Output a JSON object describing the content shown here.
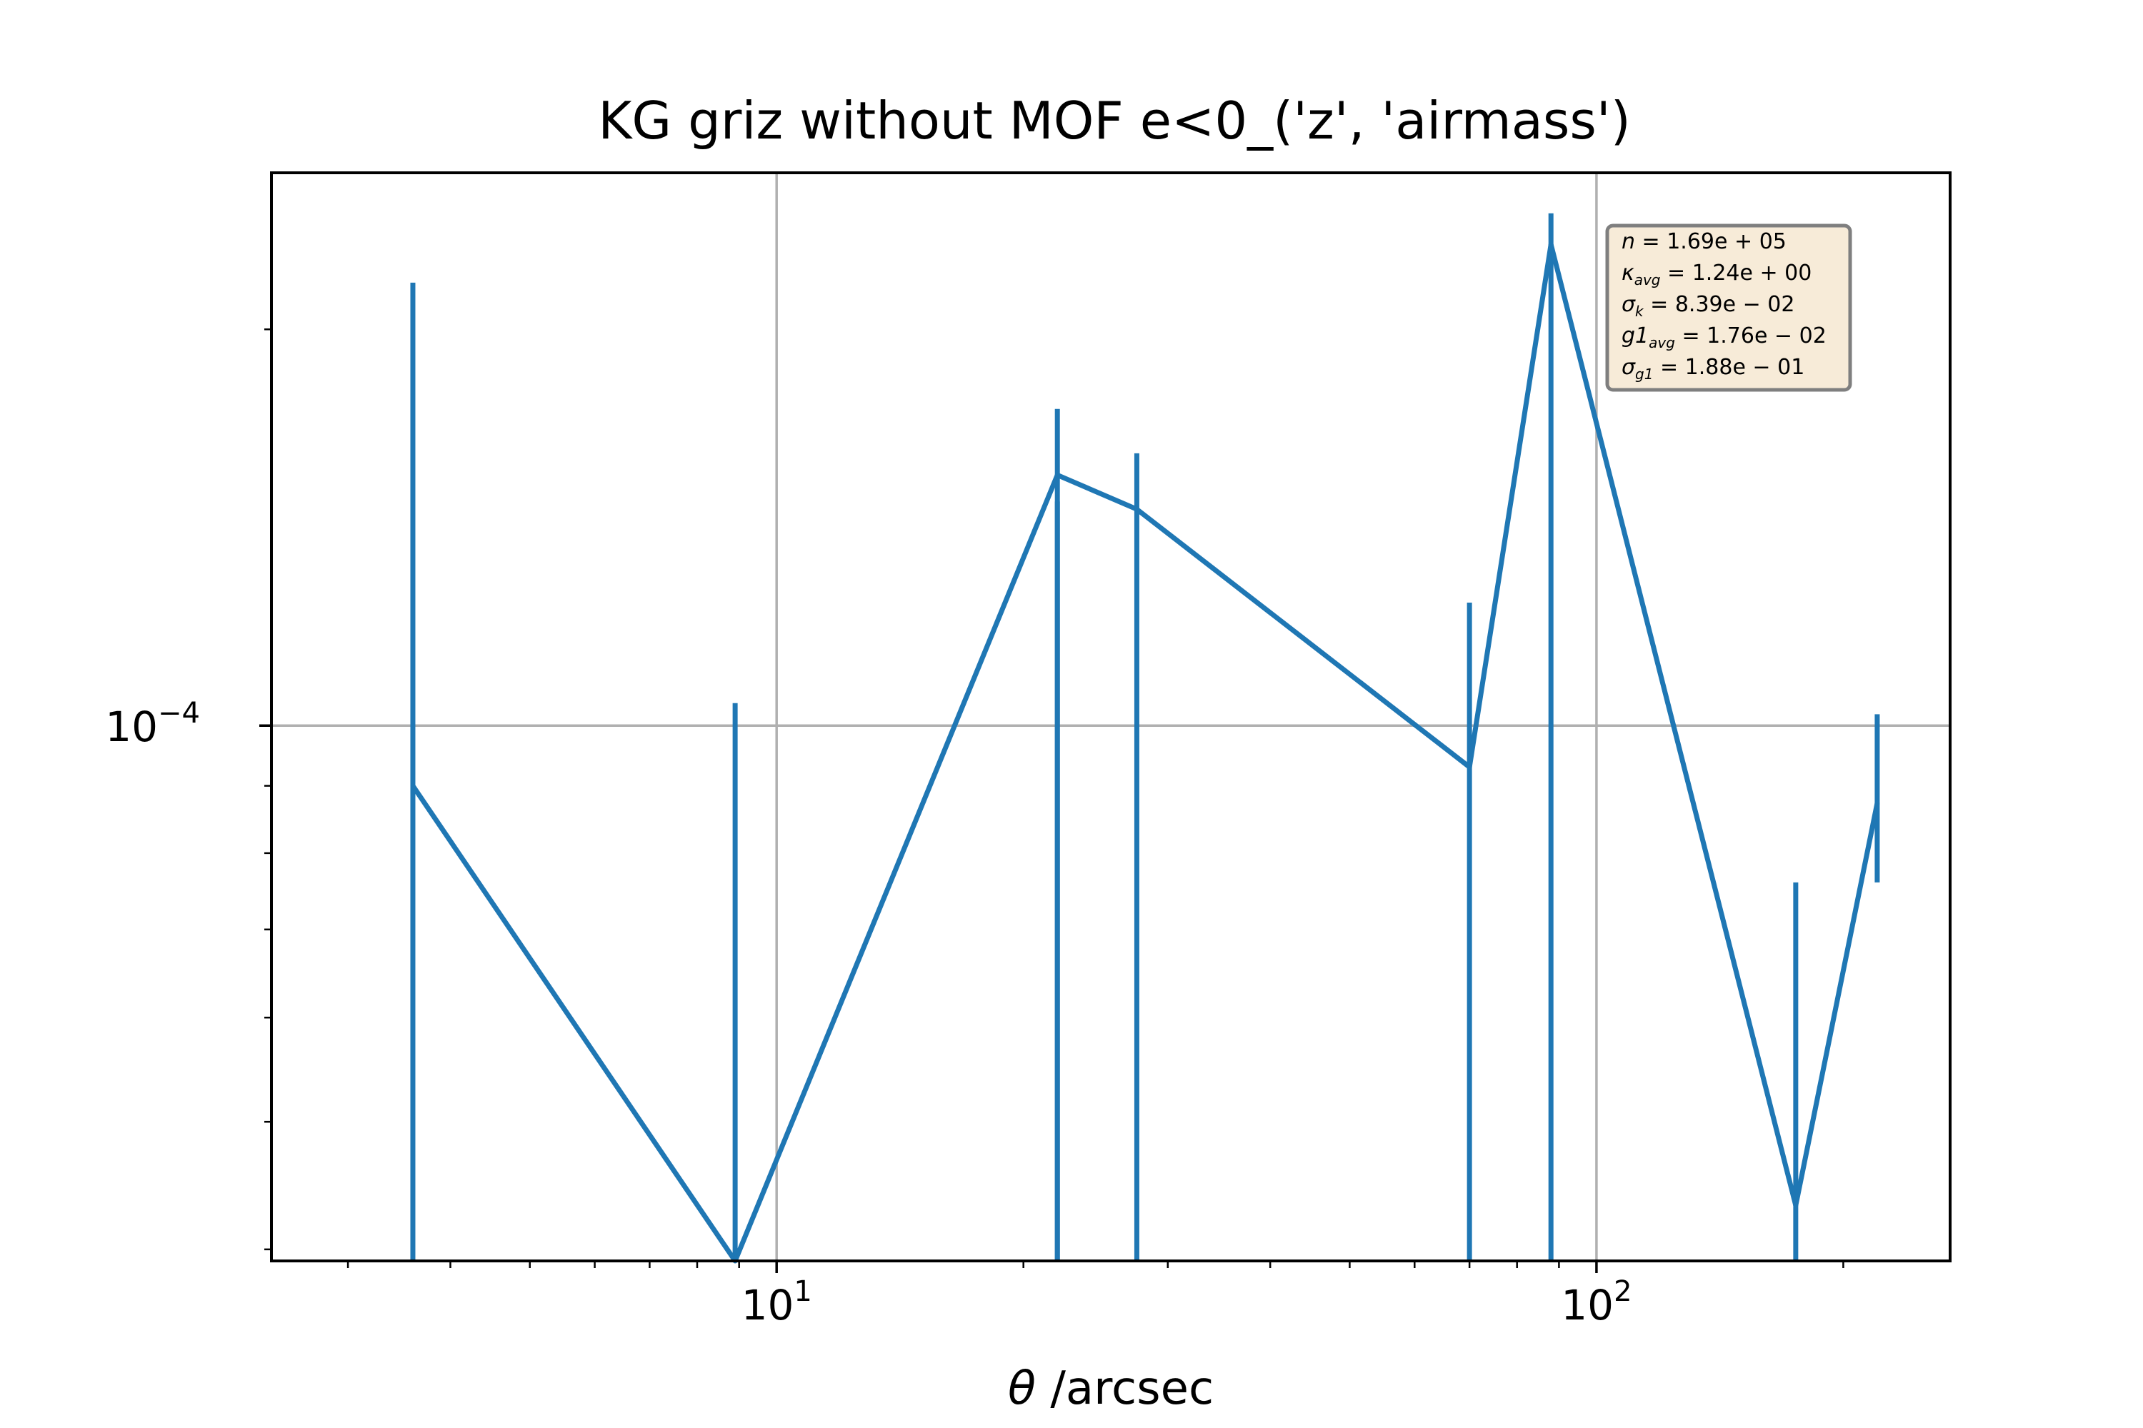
{
  "chart_data": {
    "type": "line",
    "title": "KG griz without MOF e<0_('z', 'airmass')",
    "xlabel": {
      "symbol": "θ",
      "text": " /arcsec"
    },
    "ylabel": "",
    "x_scale": "log",
    "y_scale": "log",
    "xlim": [
      2.42,
      270
    ],
    "ylim": [
      3.92e-05,
      0.000263
    ],
    "grid": true,
    "x_ticks": [
      {
        "value": 10,
        "base": "10",
        "exp": "1"
      },
      {
        "value": 100,
        "base": "10",
        "exp": "2"
      }
    ],
    "y_ticks": [
      {
        "value": 0.0001,
        "base": "10",
        "exp": "−4"
      }
    ],
    "series": [
      {
        "color": "#1f77b4",
        "points": [
          {
            "x": 3.6,
            "y": 9e-05
          },
          {
            "x": 8.9,
            "y": 3e-05
          },
          {
            "x": 22,
            "y": 0.000155
          },
          {
            "x": 27.5,
            "y": 0.000146
          },
          {
            "x": 70,
            "y": 9.3e-05
          },
          {
            "x": 88,
            "y": 0.000232
          },
          {
            "x": 175,
            "y": 4.32e-05
          },
          {
            "x": 220,
            "y": 8.73e-05
          }
        ],
        "errorbars": [
          {
            "x": 3.6,
            "low": 3.92e-05,
            "high": 0.000217
          },
          {
            "x": 8.9,
            "low": 3.92e-05,
            "high": 0.000104
          },
          {
            "x": 22,
            "low": 3.92e-05,
            "high": 0.000148
          },
          {
            "x": 22,
            "low": 3.92e-05,
            "high": 0.000174
          },
          {
            "x": 27.5,
            "low": 3.92e-05,
            "high": 0.000161
          },
          {
            "x": 70,
            "low": 3.92e-05,
            "high": 0.000124
          },
          {
            "x": 88,
            "low": 3.92e-05,
            "high": 0.000245
          },
          {
            "x": 175,
            "low": 3.92e-05,
            "high": 7.6e-05
          },
          {
            "x": 220,
            "low": 7.6e-05,
            "high": 0.000102
          }
        ]
      }
    ],
    "stats_box": {
      "position": "top-right",
      "background": "#f7ebd8",
      "border": "#7f7f7f",
      "lines": [
        {
          "sym": "n",
          "sub": "",
          "value": " = 1.69e + 05"
        },
        {
          "sym": "κ",
          "sub": "avg",
          "value": " = 1.24e + 00"
        },
        {
          "sym": "σ",
          "sub": "k",
          "value": " = 8.39e − 02"
        },
        {
          "sym": "g1",
          "sub": "avg",
          "value": " = 1.76e − 02"
        },
        {
          "sym": "σ",
          "sub": "g1",
          "value": " = 1.88e − 01"
        }
      ]
    }
  }
}
